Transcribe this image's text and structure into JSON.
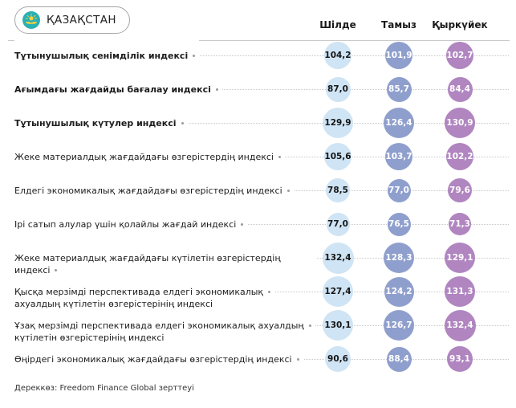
{
  "header": {
    "country": "ҚАЗАҚСТАН"
  },
  "columns_note": "month column headers live in chart_data.columns",
  "colors": {
    "column_circles": [
      "#cfe4f4",
      "#8f9fcd",
      "#b085c0"
    ],
    "column_value_text": [
      "#161616",
      "#ffffff",
      "#ffffff"
    ],
    "flag_teal": "#2ab0b4",
    "flag_gold": "#f6d23f",
    "leader_dots": "#c9c9c9",
    "divider": "#c9c9c9"
  },
  "source": "Дереккөз: Freedom Finance Global зерттеуі",
  "chart_data": {
    "type": "table",
    "title": "ҚАЗАҚСТАН",
    "subtitle": "",
    "columns": [
      "Шілде",
      "Тамыз",
      "Қыркүйек"
    ],
    "value_format": "decimal-comma, one digit",
    "bubble_size": "diameter proportional to sqrt(value)",
    "rows": [
      {
        "label": "Тұтынушылық сенімділік индексі",
        "bold": true,
        "values": [
          104.2,
          101.9,
          102.7
        ]
      },
      {
        "label": "Ағымдағы жағдайды бағалау индексі",
        "bold": true,
        "values": [
          87.0,
          85.7,
          84.4
        ]
      },
      {
        "label": "Тұтынушылық күтулер индексі",
        "bold": true,
        "values": [
          129.9,
          126.4,
          130.9
        ]
      },
      {
        "label": "Жеке материалдық жағдайдағы өзгерістердің индексі",
        "bold": false,
        "values": [
          105.6,
          103.7,
          102.2
        ]
      },
      {
        "label": "Елдегі экономикалық жағдайдағы өзгерістердің индексі",
        "bold": false,
        "values": [
          78.5,
          77.0,
          79.6
        ]
      },
      {
        "label": "Ірі сатып алулар үшін қолайлы жағдай индексі",
        "bold": false,
        "values": [
          77.0,
          76.5,
          71.3
        ]
      },
      {
        "label": "Жеке материалдық жағдайдағы күтілетін өзгерістердің индексі",
        "bold": false,
        "values": [
          132.4,
          128.3,
          129.1
        ]
      },
      {
        "label": "Қысқа мерзімді перспективада елдегі экономикалық",
        "label_line2": "ахуалдың күтілетін өзгерістерінің индексі",
        "bold": false,
        "values": [
          127.4,
          124.2,
          131.3
        ]
      },
      {
        "label": "Ұзақ мерзімді перспективада елдегі экономикалық ахуалдың",
        "label_line2": "күтілетін өзгерістерінің индексі",
        "bold": false,
        "values": [
          130.1,
          126.7,
          132.4
        ]
      },
      {
        "label": "Өңірдегі экономикалық жағдайдағы өзгерістердің индексі",
        "bold": false,
        "values": [
          90.6,
          88.4,
          93.1
        ]
      }
    ]
  }
}
